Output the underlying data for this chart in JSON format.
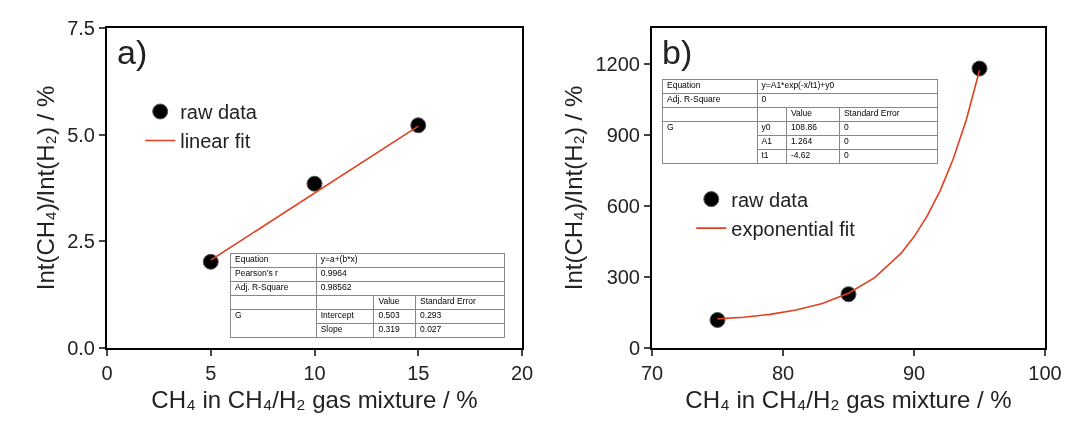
{
  "chart_data": [
    {
      "type": "scatter",
      "xlabel": "CH₄ in CH₄/H₂ gas mixture / %",
      "ylabel": "Int(CH₄)/Int(H₂) / %",
      "xlim": [
        0,
        20
      ],
      "xticks": [
        0,
        5,
        10,
        15,
        20
      ],
      "ylim": [
        0,
        7.5
      ],
      "yticks": [
        {
          "value": 0,
          "label": "0.0"
        },
        {
          "value": 2.5,
          "label": "2.5"
        },
        {
          "value": 5,
          "label": "5.0"
        },
        {
          "value": 7.5,
          "label": "7.5"
        }
      ],
      "grid": false,
      "legend": "top left",
      "annotations": [
        "a)",
        "Equation",
        "y=a+(b*x)",
        "Pearson’s r",
        "0.9964",
        "Adj. R-Square",
        "0.98562",
        "Value",
        "Standard Error",
        "G",
        "Intercept",
        "0.503",
        "0.293",
        "Slope",
        "0.319",
        "0.027"
      ],
      "series": [
        {
          "name": "raw data",
          "marker": "circle",
          "color": "#000000",
          "x": [
            5,
            10,
            15
          ],
          "values": [
            2.02,
            3.85,
            5.22
          ]
        },
        {
          "name": "linear fit",
          "type": "line",
          "color": "#e0401f",
          "x": [
            5,
            15
          ],
          "values": [
            2.06,
            5.2
          ]
        }
      ]
    },
    {
      "type": "scatter",
      "xlabel": "CH₄ in CH₄/H₂ gas mixture / %",
      "ylabel": "Int(CH₄)/Int(H₂) / %",
      "xlim": [
        70,
        100
      ],
      "xticks": [
        70,
        80,
        90,
        100
      ],
      "ylim": [
        0,
        1350
      ],
      "yticks": [
        0,
        300,
        600,
        900,
        1200
      ],
      "grid": false,
      "legend": "left",
      "annotations": [
        "b)",
        "Equation",
        "y=A1*exp(-x/t1)+y0",
        "Adj. R-Square",
        "0",
        "Value",
        "Standard Error",
        "G",
        "y0",
        "108.86",
        "0",
        "A1",
        "1.264",
        "0",
        "t1",
        "-4.62",
        "0"
      ],
      "series": [
        {
          "name": "raw data",
          "marker": "circle",
          "color": "#000000",
          "x": [
            75,
            85,
            95
          ],
          "values": [
            118,
            227,
            1179
          ]
        },
        {
          "name": "exponential fit",
          "type": "line",
          "color": "#e0401f",
          "x": [
            75,
            77,
            79,
            81,
            83,
            85,
            87,
            89,
            90,
            91,
            92,
            93,
            94,
            95
          ],
          "values": [
            123,
            130,
            142,
            160,
            188,
            231,
            297,
            399,
            469,
            556,
            664,
            798,
            964,
            1172
          ]
        }
      ]
    }
  ]
}
